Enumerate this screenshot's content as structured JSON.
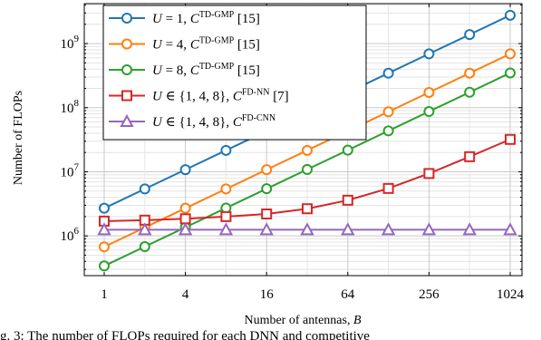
{
  "chart_data": {
    "type": "line",
    "xlabel": "Number of antennas, B",
    "ylabel": "Number of FLOPs",
    "x_scale": "log2",
    "y_scale": "log10",
    "xlim": [
      1,
      1024
    ],
    "ylim": [
      240000,
      4200000000
    ],
    "x_ticks": [
      1,
      4,
      16,
      64,
      256,
      1024
    ],
    "x_tick_labels": [
      "1",
      "4",
      "16",
      "64",
      "256",
      "1024"
    ],
    "y_ticks": [
      1000000,
      10000000,
      100000000,
      1000000000
    ],
    "y_tick_labels": [
      {
        "base": "10",
        "exp": "6"
      },
      {
        "base": "10",
        "exp": "7"
      },
      {
        "base": "10",
        "exp": "8"
      },
      {
        "base": "10",
        "exp": "9"
      }
    ],
    "grid": true,
    "legend_position": "top-left",
    "x": [
      1,
      2,
      4,
      8,
      16,
      32,
      64,
      128,
      256,
      512,
      1024
    ],
    "series": [
      {
        "name": "U = 1, C^TD-GMP [15]",
        "legend": {
          "u": "U",
          "rel": " = 1, ",
          "c": "C",
          "sup": "TD-GMP",
          "ref": " [15]"
        },
        "color": "#1f77b4",
        "marker": "circle",
        "values": [
          2700000,
          5400000,
          10800000,
          21600000,
          43200000,
          86400000,
          172800000,
          345600000,
          691200000,
          1382400000,
          2764800000
        ]
      },
      {
        "name": "U = 4, C^TD-GMP [15]",
        "legend": {
          "u": "U",
          "rel": " = 4, ",
          "c": "C",
          "sup": "TD-GMP",
          "ref": " [15]"
        },
        "color": "#ff7f0e",
        "marker": "circle",
        "values": [
          675000,
          1350000,
          2700000,
          5400000,
          10800000,
          21600000,
          43200000,
          86400000,
          172800000,
          345600000,
          691200000
        ]
      },
      {
        "name": "U = 8, C^TD-GMP [15]",
        "legend": {
          "u": "U",
          "rel": " = 8, ",
          "c": "C",
          "sup": "TD-GMP",
          "ref": " [15]"
        },
        "color": "#2ca02c",
        "marker": "circle",
        "values": [
          340000,
          680000,
          1360000,
          2720000,
          5440000,
          10880000,
          21760000,
          43520000,
          87040000,
          174080000,
          348160000
        ]
      },
      {
        "name": "U ∈ {1, 4, 8}, C^FD-NN [7]",
        "legend": {
          "u": "U",
          "rel": " ∈ {1, 4, 8}, ",
          "c": "C",
          "sup": "FD-NN",
          "ref": " [7]"
        },
        "color": "#d62728",
        "marker": "square",
        "values": [
          1700000,
          1760000,
          1850000,
          2000000,
          2200000,
          2650000,
          3600000,
          5500000,
          9400000,
          17200000,
          32000000
        ]
      },
      {
        "name": "U ∈ {1, 4, 8}, C^FD-CNN",
        "legend": {
          "u": "U",
          "rel": " ∈ {1, 4, 8}, ",
          "c": "C",
          "sup": "FD-CNN",
          "ref": ""
        },
        "color": "#9467bd",
        "marker": "triangle",
        "values": [
          1250000,
          1250000,
          1250000,
          1250000,
          1250000,
          1250000,
          1250000,
          1250000,
          1250000,
          1250000,
          1250000
        ]
      }
    ]
  },
  "caption": "g. 3: The number of FLOPs required for each DNN and competitive"
}
